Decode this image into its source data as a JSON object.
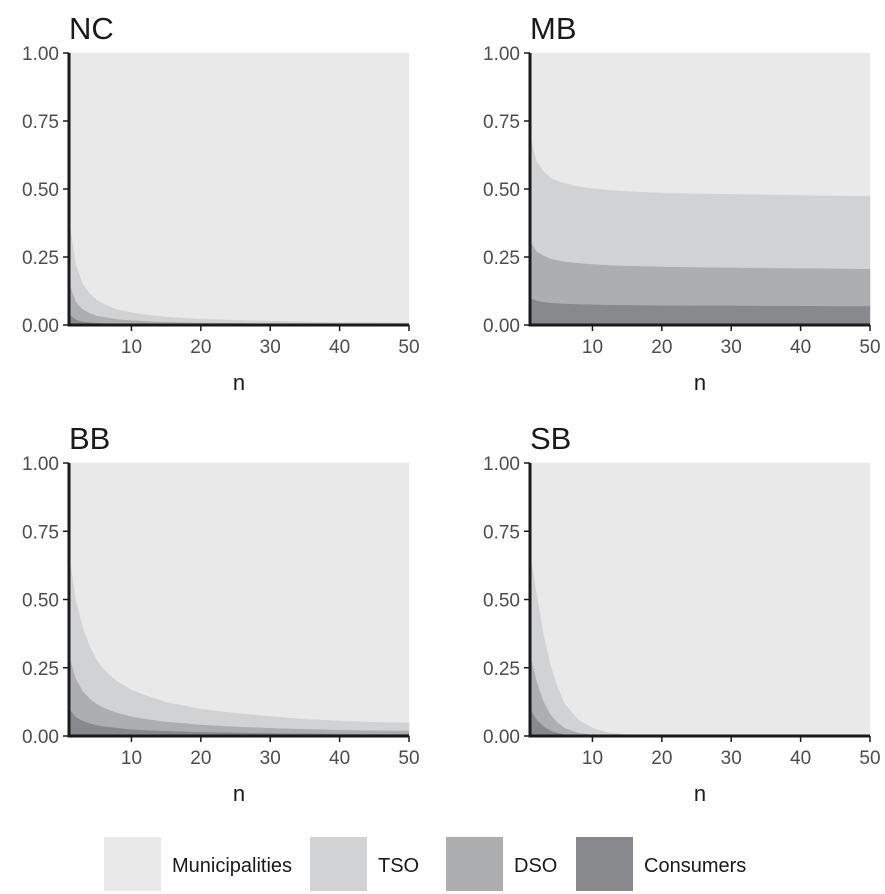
{
  "chart_data": [
    {
      "type": "area",
      "stacked": true,
      "title": "NC",
      "xlabel": "n",
      "ylabel": "",
      "xlim": [
        1,
        50
      ],
      "ylim": [
        0,
        1
      ],
      "x_ticks": [
        10,
        20,
        30,
        40,
        50
      ],
      "y_ticks": [
        "0.00",
        "0.25",
        "0.50",
        "0.75",
        "1.00"
      ],
      "grid": false,
      "x": [
        1,
        2,
        3,
        4,
        5,
        6,
        8,
        10,
        12,
        15,
        20,
        25,
        30,
        35,
        40,
        45,
        50
      ],
      "series": [
        {
          "name": "Consumers",
          "values": [
            0.04,
            0.02,
            0.013,
            0.01,
            0.008,
            0.007,
            0.005,
            0.004,
            0.003,
            0.003,
            0.002,
            0.002,
            0.001,
            0.001,
            0.001,
            0.001,
            0.001
          ]
        },
        {
          "name": "DSO",
          "values": [
            0.12,
            0.065,
            0.045,
            0.034,
            0.027,
            0.023,
            0.017,
            0.014,
            0.012,
            0.009,
            0.007,
            0.006,
            0.005,
            0.004,
            0.003,
            0.003,
            0.002
          ]
        },
        {
          "name": "TSO",
          "values": [
            0.24,
            0.14,
            0.095,
            0.072,
            0.058,
            0.048,
            0.036,
            0.029,
            0.024,
            0.019,
            0.014,
            0.011,
            0.01,
            0.008,
            0.007,
            0.007,
            0.006
          ]
        },
        {
          "name": "Municipalities",
          "values": [
            0.6,
            0.775,
            0.847,
            0.884,
            0.907,
            0.922,
            0.942,
            0.953,
            0.961,
            0.969,
            0.977,
            0.981,
            0.984,
            0.987,
            0.989,
            0.989,
            0.991
          ]
        }
      ]
    },
    {
      "type": "area",
      "stacked": true,
      "title": "MB",
      "xlabel": "n",
      "ylabel": "",
      "xlim": [
        1,
        50
      ],
      "ylim": [
        0,
        1
      ],
      "x_ticks": [
        10,
        20,
        30,
        40,
        50
      ],
      "y_ticks": [
        "0.00",
        "0.25",
        "0.50",
        "0.75",
        "1.00"
      ],
      "grid": false,
      "x": [
        1,
        2,
        3,
        4,
        5,
        6,
        8,
        10,
        12,
        15,
        20,
        25,
        30,
        35,
        40,
        45,
        50
      ],
      "series": [
        {
          "name": "Consumers",
          "values": [
            0.1,
            0.09,
            0.085,
            0.082,
            0.08,
            0.079,
            0.077,
            0.076,
            0.075,
            0.074,
            0.073,
            0.072,
            0.072,
            0.071,
            0.071,
            0.07,
            0.07
          ]
        },
        {
          "name": "DSO",
          "values": [
            0.21,
            0.18,
            0.17,
            0.162,
            0.158,
            0.155,
            0.151,
            0.148,
            0.146,
            0.144,
            0.142,
            0.141,
            0.14,
            0.139,
            0.138,
            0.138,
            0.137
          ]
        },
        {
          "name": "TSO",
          "values": [
            0.39,
            0.33,
            0.31,
            0.298,
            0.292,
            0.288,
            0.282,
            0.279,
            0.277,
            0.274,
            0.272,
            0.271,
            0.27,
            0.27,
            0.269,
            0.268,
            0.268
          ]
        },
        {
          "name": "Municipalities",
          "values": [
            0.3,
            0.4,
            0.435,
            0.458,
            0.47,
            0.478,
            0.49,
            0.497,
            0.502,
            0.508,
            0.513,
            0.516,
            0.518,
            0.52,
            0.522,
            0.524,
            0.525
          ]
        }
      ]
    },
    {
      "type": "area",
      "stacked": true,
      "title": "BB",
      "xlabel": "n",
      "ylabel": "",
      "xlim": [
        1,
        50
      ],
      "ylim": [
        0,
        1
      ],
      "x_ticks": [
        10,
        20,
        30,
        40,
        50
      ],
      "y_ticks": [
        "0.00",
        "0.25",
        "0.50",
        "0.75",
        "1.00"
      ],
      "grid": false,
      "x": [
        1,
        2,
        3,
        4,
        5,
        6,
        8,
        10,
        12,
        15,
        20,
        25,
        30,
        35,
        40,
        45,
        50
      ],
      "series": [
        {
          "name": "Consumers",
          "values": [
            0.1,
            0.07,
            0.056,
            0.047,
            0.04,
            0.036,
            0.03,
            0.025,
            0.022,
            0.019,
            0.015,
            0.013,
            0.011,
            0.01,
            0.009,
            0.008,
            0.008
          ]
        },
        {
          "name": "DSO",
          "values": [
            0.2,
            0.14,
            0.109,
            0.09,
            0.078,
            0.068,
            0.055,
            0.047,
            0.041,
            0.034,
            0.027,
            0.022,
            0.019,
            0.016,
            0.014,
            0.013,
            0.012
          ]
        },
        {
          "name": "TSO",
          "values": [
            0.38,
            0.29,
            0.235,
            0.193,
            0.162,
            0.141,
            0.115,
            0.098,
            0.087,
            0.072,
            0.058,
            0.05,
            0.043,
            0.037,
            0.034,
            0.031,
            0.029
          ]
        },
        {
          "name": "Municipalities",
          "values": [
            0.32,
            0.5,
            0.6,
            0.67,
            0.72,
            0.755,
            0.8,
            0.83,
            0.85,
            0.875,
            0.9,
            0.915,
            0.927,
            0.937,
            0.943,
            0.948,
            0.951
          ]
        }
      ]
    },
    {
      "type": "area",
      "stacked": true,
      "title": "SB",
      "xlabel": "n",
      "ylabel": "",
      "xlim": [
        1,
        50
      ],
      "ylim": [
        0,
        1
      ],
      "x_ticks": [
        10,
        20,
        30,
        40,
        50
      ],
      "y_ticks": [
        "0.00",
        "0.25",
        "0.50",
        "0.75",
        "1.00"
      ],
      "grid": false,
      "x": [
        1,
        2,
        3,
        4,
        5,
        6,
        8,
        10,
        12,
        15,
        20,
        25,
        30,
        35,
        40,
        45,
        50
      ],
      "series": [
        {
          "name": "Consumers",
          "values": [
            0.1,
            0.06,
            0.035,
            0.02,
            0.012,
            0.007,
            0.002,
            0.001,
            0,
            0,
            0,
            0,
            0,
            0,
            0,
            0,
            0
          ]
        },
        {
          "name": "DSO",
          "values": [
            0.2,
            0.14,
            0.09,
            0.058,
            0.037,
            0.023,
            0.01,
            0.004,
            0.002,
            0.001,
            0,
            0,
            0,
            0,
            0,
            0,
            0
          ]
        },
        {
          "name": "TSO",
          "values": [
            0.38,
            0.32,
            0.245,
            0.182,
            0.131,
            0.09,
            0.048,
            0.025,
            0.013,
            0.005,
            0.001,
            0,
            0,
            0,
            0,
            0,
            0
          ]
        },
        {
          "name": "Municipalities",
          "values": [
            0.32,
            0.48,
            0.63,
            0.74,
            0.82,
            0.88,
            0.94,
            0.97,
            0.985,
            0.994,
            0.999,
            1,
            1,
            1,
            1,
            1,
            1
          ]
        }
      ]
    }
  ],
  "legend": {
    "position": "bottom",
    "items": [
      {
        "label": "Municipalities",
        "color": "#e9e9ea"
      },
      {
        "label": "TSO",
        "color": "#d1d2d3"
      },
      {
        "label": "DSO",
        "color": "#adaeb0"
      },
      {
        "label": "Consumers",
        "color": "#88898c"
      }
    ]
  },
  "colors": {
    "Municipalities": "#e9e9ea",
    "TSO": "#d1d2d3",
    "DSO": "#adaeb0",
    "Consumers": "#88898c",
    "axis": "#1a1a1a"
  }
}
